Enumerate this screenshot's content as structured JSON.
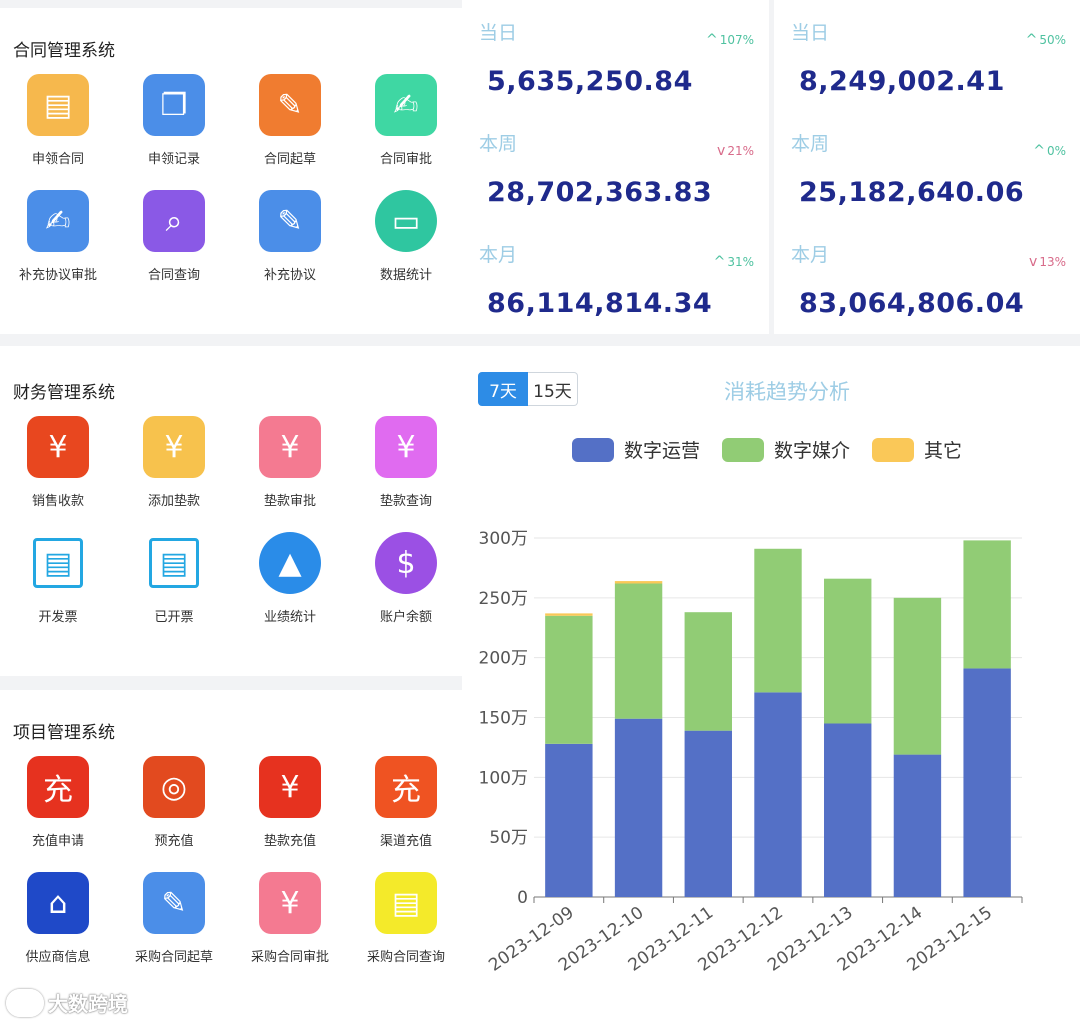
{
  "sections": [
    {
      "title": "合同管理系统",
      "items": [
        {
          "label": "申领合同",
          "icon": "document-add-icon",
          "color": "#f6b84d",
          "glyph": "▤"
        },
        {
          "label": "申领记录",
          "icon": "documents-icon",
          "color": "#4b8ee8",
          "glyph": "❐"
        },
        {
          "label": "合同起草",
          "icon": "draft-edit-icon",
          "color": "#f07c30",
          "glyph": "✎"
        },
        {
          "label": "合同审批",
          "icon": "approve-edit-icon",
          "color": "#3fd7a3",
          "glyph": "✍"
        },
        {
          "label": "补充协议审批",
          "icon": "signature-icon",
          "color": "#4b8ee8",
          "glyph": "✍"
        },
        {
          "label": "合同查询",
          "icon": "document-search-icon",
          "color": "#8a59e6",
          "glyph": "⌕"
        },
        {
          "label": "补充协议",
          "icon": "agreement-edit-icon",
          "color": "#4b8ee8",
          "glyph": "✎"
        },
        {
          "label": "数据统计",
          "icon": "data-card-icon",
          "color": "#2fc6a0",
          "glyph": "▭",
          "round": true
        }
      ]
    },
    {
      "title": "财务管理系统",
      "items": [
        {
          "label": "销售收款",
          "icon": "receipt-yuan-icon",
          "color": "#e8471f",
          "glyph": "¥"
        },
        {
          "label": "添加垫款",
          "icon": "add-advance-icon",
          "color": "#f7c24d",
          "glyph": "¥"
        },
        {
          "label": "垫款审批",
          "icon": "advance-approve-icon",
          "color": "#f47a91",
          "glyph": "¥"
        },
        {
          "label": "垫款查询",
          "icon": "advance-search-icon",
          "color": "#e06bf0",
          "glyph": "¥"
        },
        {
          "label": "开发票",
          "icon": "invoice-print-icon",
          "color": "#23a7e2",
          "glyph": "▤",
          "plain": true
        },
        {
          "label": "已开票",
          "icon": "receipt-icon",
          "color": "#23a7e2",
          "glyph": "▤",
          "plain": true
        },
        {
          "label": "业绩统计",
          "icon": "bar-chart-icon",
          "color": "#2a8ce8",
          "glyph": "▲",
          "round": true
        },
        {
          "label": "账户余额",
          "icon": "money-bag-icon",
          "color": "#9b50e4",
          "glyph": "$",
          "round": true
        }
      ]
    },
    {
      "title": "项目管理系统",
      "items": [
        {
          "label": "充值申请",
          "icon": "recharge-icon",
          "color": "#e6321f",
          "glyph": "充"
        },
        {
          "label": "预充值",
          "icon": "coins-icon",
          "color": "#e24a1f",
          "glyph": "◎"
        },
        {
          "label": "垫款充值",
          "icon": "advance-recharge-icon",
          "color": "#e6321f",
          "glyph": "¥"
        },
        {
          "label": "渠道充值",
          "icon": "channel-recharge-icon",
          "color": "#ef5322",
          "glyph": "充"
        },
        {
          "label": "供应商信息",
          "icon": "storefront-icon",
          "color": "#1f49c8",
          "glyph": "⌂"
        },
        {
          "label": "采购合同起草",
          "icon": "purchase-draft-icon",
          "color": "#4b8ee8",
          "glyph": "✎"
        },
        {
          "label": "采购合同审批",
          "icon": "purchase-approve-icon",
          "color": "#f47a91",
          "glyph": "¥"
        },
        {
          "label": "采购合同查询",
          "icon": "purchase-search-icon",
          "color": "#f4ea2a",
          "glyph": "▤"
        }
      ]
    }
  ],
  "stats": [
    [
      {
        "label": "当日",
        "value": "5,635,250.84",
        "change": "107%",
        "direction": "up"
      },
      {
        "label": "本周",
        "value": "28,702,363.83",
        "change": "21%",
        "direction": "down"
      },
      {
        "label": "本月",
        "value": "86,114,814.34",
        "change": "31%",
        "direction": "up"
      }
    ],
    [
      {
        "label": "当日",
        "value": "8,249,002.41",
        "change": "50%",
        "direction": "up"
      },
      {
        "label": "本周",
        "value": "25,182,640.06",
        "change": "0%",
        "direction": "up"
      },
      {
        "label": "本月",
        "value": "83,064,806.04",
        "change": "13%",
        "direction": "down"
      }
    ]
  ],
  "tabs": [
    "7天",
    "15天"
  ],
  "active_tab": 0,
  "chart_title": "消耗趋势分析",
  "colors": {
    "series": [
      "#5470c6",
      "#91cc75",
      "#fac858"
    ],
    "up": "#4fc2a0",
    "down": "#d86b8a",
    "value": "#1f2a8c",
    "accent": "#2d8ce6"
  },
  "arrows": {
    "up": "^",
    "down": "v"
  },
  "chart_data": {
    "type": "bar",
    "stacked": true,
    "categories": [
      "2023-12-09",
      "2023-12-10",
      "2023-12-11",
      "2023-12-12",
      "2023-12-13",
      "2023-12-14",
      "2023-12-15"
    ],
    "series": [
      {
        "name": "数字运营",
        "values": [
          128,
          149,
          139,
          171,
          145,
          119,
          191
        ]
      },
      {
        "name": "数字媒介",
        "values": [
          107,
          113,
          99,
          120,
          121,
          131,
          107
        ]
      },
      {
        "name": "其它",
        "values": [
          2,
          2,
          0,
          0,
          0,
          0,
          0
        ]
      }
    ],
    "y_ticks": [
      "0",
      "50万",
      "100万",
      "150万",
      "200万",
      "250万",
      "300万"
    ],
    "ylim": [
      0,
      300
    ],
    "y_unit": "万",
    "legend_position": "top",
    "grid": true
  },
  "watermark": "大数跨境"
}
